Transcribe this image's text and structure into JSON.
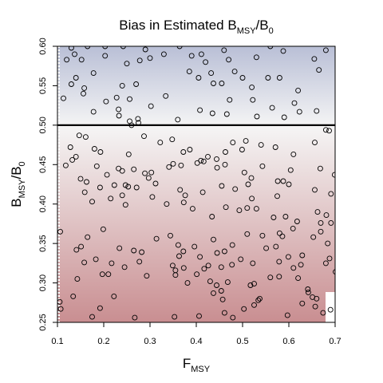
{
  "chart_data": {
    "type": "scatter",
    "title": {
      "main": "Bias in Estimated B",
      "sub1": "MSY",
      "slash": "/B",
      "sub2": "0"
    },
    "xlabel": {
      "main": "F",
      "sub": "MSY"
    },
    "ylabel": {
      "main": "B",
      "sub1": "MSY",
      "slash": "/B",
      "sub2": "0"
    },
    "xlim": [
      0.1,
      0.7
    ],
    "ylim": [
      0.25,
      0.6
    ],
    "xticks": [
      "0.1",
      "0.2",
      "0.3",
      "0.4",
      "0.5",
      "0.6",
      "0.7"
    ],
    "yticks": [
      "0.25",
      "0.30",
      "0.35",
      "0.40",
      "0.45",
      "0.50",
      "0.55",
      "0.60"
    ],
    "reference_line_y": 0.5,
    "background": {
      "top_color": "#b9bfd6",
      "mid_color": "#f5f5f5",
      "bottom_color": "#c98e91"
    },
    "grid": false,
    "points": [
      [
        0.12,
        0.583
      ],
      [
        0.13,
        0.598
      ],
      [
        0.137,
        0.59
      ],
      [
        0.165,
        0.6
      ],
      [
        0.203,
        0.6
      ],
      [
        0.242,
        0.6
      ],
      [
        0.29,
        0.596
      ],
      [
        0.3,
        0.585
      ],
      [
        0.33,
        0.59
      ],
      [
        0.152,
        0.583
      ],
      [
        0.203,
        0.588
      ],
      [
        0.25,
        0.578
      ],
      [
        0.278,
        0.582
      ],
      [
        0.364,
        0.6
      ],
      [
        0.39,
        0.588
      ],
      [
        0.411,
        0.59
      ],
      [
        0.42,
        0.58
      ],
      [
        0.46,
        0.595
      ],
      [
        0.47,
        0.583
      ],
      [
        0.483,
        0.568
      ],
      [
        0.53,
        0.586
      ],
      [
        0.56,
        0.6
      ],
      [
        0.588,
        0.594
      ],
      [
        0.655,
        0.584
      ],
      [
        0.68,
        0.595
      ],
      [
        0.385,
        0.568
      ],
      [
        0.405,
        0.56
      ],
      [
        0.432,
        0.566
      ],
      [
        0.437,
        0.553
      ],
      [
        0.455,
        0.553
      ],
      [
        0.5,
        0.56
      ],
      [
        0.52,
        0.548
      ],
      [
        0.555,
        0.56
      ],
      [
        0.58,
        0.56
      ],
      [
        0.62,
        0.544
      ],
      [
        0.665,
        0.57
      ],
      [
        0.13,
        0.552
      ],
      [
        0.14,
        0.56
      ],
      [
        0.178,
        0.566
      ],
      [
        0.24,
        0.55
      ],
      [
        0.27,
        0.552
      ],
      [
        0.113,
        0.534
      ],
      [
        0.158,
        0.547
      ],
      [
        0.156,
        0.54
      ],
      [
        0.205,
        0.53
      ],
      [
        0.228,
        0.535
      ],
      [
        0.232,
        0.52
      ],
      [
        0.256,
        0.533
      ],
      [
        0.302,
        0.524
      ],
      [
        0.334,
        0.537
      ],
      [
        0.408,
        0.519
      ],
      [
        0.472,
        0.532
      ],
      [
        0.522,
        0.532
      ],
      [
        0.531,
        0.511
      ],
      [
        0.564,
        0.522
      ],
      [
        0.59,
        0.51
      ],
      [
        0.612,
        0.528
      ],
      [
        0.66,
        0.518
      ],
      [
        0.178,
        0.517
      ],
      [
        0.233,
        0.512
      ],
      [
        0.256,
        0.505
      ],
      [
        0.26,
        0.5
      ],
      [
        0.274,
        0.508
      ],
      [
        0.275,
        0.503
      ],
      [
        0.36,
        0.507
      ],
      [
        0.435,
        0.515
      ],
      [
        0.466,
        0.514
      ],
      [
        0.623,
        0.517
      ],
      [
        0.128,
        0.472
      ],
      [
        0.118,
        0.449
      ],
      [
        0.147,
        0.487
      ],
      [
        0.161,
        0.485
      ],
      [
        0.18,
        0.47
      ],
      [
        0.193,
        0.466
      ],
      [
        0.254,
        0.463
      ],
      [
        0.287,
        0.486
      ],
      [
        0.322,
        0.478
      ],
      [
        0.348,
        0.482
      ],
      [
        0.372,
        0.466
      ],
      [
        0.386,
        0.469
      ],
      [
        0.41,
        0.455
      ],
      [
        0.425,
        0.46
      ],
      [
        0.444,
        0.457
      ],
      [
        0.463,
        0.466
      ],
      [
        0.479,
        0.478
      ],
      [
        0.499,
        0.469
      ],
      [
        0.507,
        0.48
      ],
      [
        0.54,
        0.475
      ],
      [
        0.571,
        0.472
      ],
      [
        0.61,
        0.463
      ],
      [
        0.656,
        0.478
      ],
      [
        0.68,
        0.494
      ],
      [
        0.687,
        0.493
      ],
      [
        0.14,
        0.46
      ],
      [
        0.132,
        0.456
      ],
      [
        0.185,
        0.448
      ],
      [
        0.207,
        0.437
      ],
      [
        0.232,
        0.445
      ],
      [
        0.24,
        0.442
      ],
      [
        0.265,
        0.444
      ],
      [
        0.289,
        0.439
      ],
      [
        0.303,
        0.44
      ],
      [
        0.341,
        0.447
      ],
      [
        0.35,
        0.451
      ],
      [
        0.367,
        0.449
      ],
      [
        0.402,
        0.452
      ],
      [
        0.416,
        0.454
      ],
      [
        0.445,
        0.446
      ],
      [
        0.462,
        0.45
      ],
      [
        0.504,
        0.44
      ],
      [
        0.519,
        0.433
      ],
      [
        0.543,
        0.448
      ],
      [
        0.576,
        0.429
      ],
      [
        0.604,
        0.443
      ],
      [
        0.668,
        0.445
      ],
      [
        0.699,
        0.437
      ],
      [
        0.15,
        0.432
      ],
      [
        0.163,
        0.428
      ],
      [
        0.192,
        0.421
      ],
      [
        0.223,
        0.424
      ],
      [
        0.247,
        0.424
      ],
      [
        0.253,
        0.422
      ],
      [
        0.271,
        0.421
      ],
      [
        0.297,
        0.433
      ],
      [
        0.312,
        0.426
      ],
      [
        0.365,
        0.418
      ],
      [
        0.376,
        0.411
      ],
      [
        0.414,
        0.415
      ],
      [
        0.455,
        0.423
      ],
      [
        0.484,
        0.419
      ],
      [
        0.512,
        0.425
      ],
      [
        0.52,
        0.407
      ],
      [
        0.575,
        0.41
      ],
      [
        0.588,
        0.429
      ],
      [
        0.6,
        0.425
      ],
      [
        0.656,
        0.418
      ],
      [
        0.691,
        0.413
      ],
      [
        0.159,
        0.415
      ],
      [
        0.175,
        0.403
      ],
      [
        0.215,
        0.407
      ],
      [
        0.24,
        0.411
      ],
      [
        0.247,
        0.399
      ],
      [
        0.305,
        0.409
      ],
      [
        0.336,
        0.4
      ],
      [
        0.373,
        0.402
      ],
      [
        0.392,
        0.394
      ],
      [
        0.434,
        0.384
      ],
      [
        0.464,
        0.396
      ],
      [
        0.493,
        0.392
      ],
      [
        0.51,
        0.395
      ],
      [
        0.53,
        0.394
      ],
      [
        0.567,
        0.383
      ],
      [
        0.593,
        0.384
      ],
      [
        0.618,
        0.378
      ],
      [
        0.662,
        0.39
      ],
      [
        0.669,
        0.376
      ],
      [
        0.681,
        0.386
      ],
      [
        0.691,
        0.376
      ],
      [
        0.106,
        0.365
      ],
      [
        0.165,
        0.358
      ],
      [
        0.199,
        0.368
      ],
      [
        0.314,
        0.356
      ],
      [
        0.344,
        0.36
      ],
      [
        0.361,
        0.348
      ],
      [
        0.396,
        0.346
      ],
      [
        0.437,
        0.355
      ],
      [
        0.478,
        0.348
      ],
      [
        0.51,
        0.362
      ],
      [
        0.543,
        0.36
      ],
      [
        0.572,
        0.346
      ],
      [
        0.58,
        0.363
      ],
      [
        0.586,
        0.359
      ],
      [
        0.609,
        0.369
      ],
      [
        0.653,
        0.358
      ],
      [
        0.669,
        0.365
      ],
      [
        0.684,
        0.35
      ],
      [
        0.141,
        0.342
      ],
      [
        0.151,
        0.346
      ],
      [
        0.234,
        0.344
      ],
      [
        0.265,
        0.341
      ],
      [
        0.282,
        0.339
      ],
      [
        0.363,
        0.334
      ],
      [
        0.372,
        0.34
      ],
      [
        0.408,
        0.333
      ],
      [
        0.445,
        0.338
      ],
      [
        0.461,
        0.34
      ],
      [
        0.496,
        0.33
      ],
      [
        0.551,
        0.344
      ],
      [
        0.599,
        0.333
      ],
      [
        0.629,
        0.335
      ],
      [
        0.688,
        0.331
      ],
      [
        0.158,
        0.326
      ],
      [
        0.183,
        0.33
      ],
      [
        0.217,
        0.325
      ],
      [
        0.277,
        0.327
      ],
      [
        0.349,
        0.322
      ],
      [
        0.373,
        0.319
      ],
      [
        0.401,
        0.311
      ],
      [
        0.417,
        0.318
      ],
      [
        0.426,
        0.322
      ],
      [
        0.454,
        0.32
      ],
      [
        0.477,
        0.323
      ],
      [
        0.522,
        0.325
      ],
      [
        0.579,
        0.327
      ],
      [
        0.61,
        0.319
      ],
      [
        0.626,
        0.323
      ],
      [
        0.68,
        0.325
      ],
      [
        0.143,
        0.305
      ],
      [
        0.197,
        0.311
      ],
      [
        0.21,
        0.311
      ],
      [
        0.245,
        0.32
      ],
      [
        0.293,
        0.309
      ],
      [
        0.355,
        0.316
      ],
      [
        0.355,
        0.31
      ],
      [
        0.381,
        0.3
      ],
      [
        0.43,
        0.302
      ],
      [
        0.444,
        0.297
      ],
      [
        0.454,
        0.29
      ],
      [
        0.468,
        0.301
      ],
      [
        0.517,
        0.297
      ],
      [
        0.525,
        0.299
      ],
      [
        0.56,
        0.307
      ],
      [
        0.579,
        0.308
      ],
      [
        0.62,
        0.306
      ],
      [
        0.642,
        0.288
      ],
      [
        0.651,
        0.282
      ],
      [
        0.66,
        0.28
      ],
      [
        0.701,
        0.314
      ],
      [
        0.105,
        0.276
      ],
      [
        0.107,
        0.267
      ],
      [
        0.134,
        0.283
      ],
      [
        0.175,
        0.257
      ],
      [
        0.192,
        0.268
      ],
      [
        0.222,
        0.283
      ],
      [
        0.267,
        0.256
      ],
      [
        0.353,
        0.257
      ],
      [
        0.406,
        0.258
      ],
      [
        0.437,
        0.287
      ],
      [
        0.457,
        0.279
      ],
      [
        0.461,
        0.262
      ],
      [
        0.479,
        0.256
      ],
      [
        0.503,
        0.267
      ],
      [
        0.525,
        0.272
      ],
      [
        0.534,
        0.278
      ],
      [
        0.537,
        0.28
      ],
      [
        0.597,
        0.259
      ],
      [
        0.629,
        0.274
      ],
      [
        0.641,
        0.292
      ],
      [
        0.657,
        0.27
      ],
      [
        0.674,
        0.262
      ],
      [
        0.69,
        0.266
      ]
    ]
  }
}
